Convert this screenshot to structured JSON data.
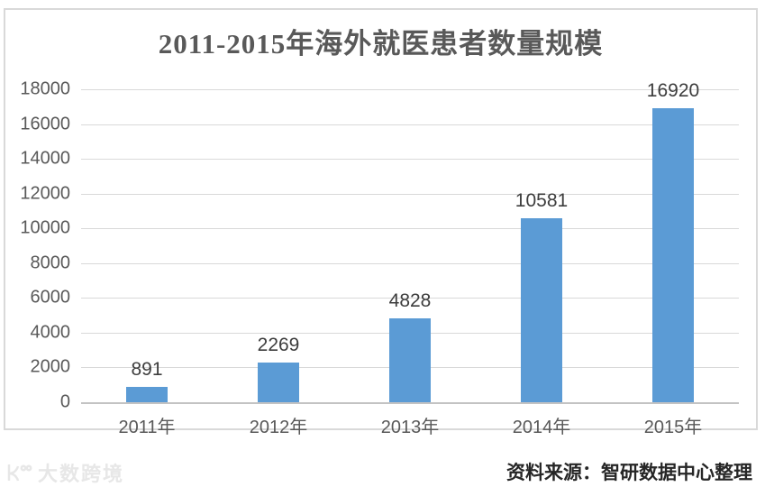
{
  "chart_data": {
    "type": "bar",
    "title": "2011-2015年海外就医患者数量规模",
    "categories": [
      "2011年",
      "2012年",
      "2013年",
      "2014年",
      "2015年"
    ],
    "values": [
      891,
      2269,
      4828,
      10581,
      16920
    ],
    "data_labels": [
      "891",
      "2269",
      "4828",
      "10581",
      "16920"
    ],
    "xlabel": "",
    "ylabel": "",
    "ylim": [
      0,
      18000
    ],
    "ytick_step": 2000,
    "yticks": [
      0,
      2000,
      4000,
      6000,
      8000,
      10000,
      12000,
      14000,
      16000,
      18000
    ],
    "grid": true,
    "legend": "none",
    "bar_color": "#5b9bd5",
    "gridline_color": "#d9d9d9",
    "axis_tick_color": "#595959",
    "title_color": "#595959",
    "data_label_color": "#3d3d3d"
  },
  "footer": {
    "source_label": "资料来源：智研数据中心整理",
    "watermark_text": "大数跨境"
  }
}
